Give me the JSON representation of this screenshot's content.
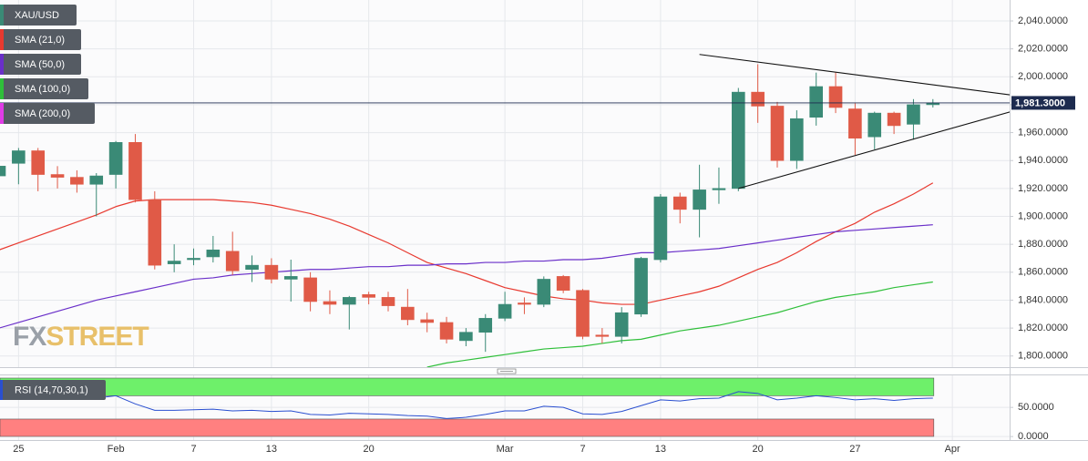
{
  "chart_data": {
    "type": "candlestick",
    "title": "XAU/USD",
    "up_color": "#3a8a76",
    "down_color": "#e05a47",
    "categories": [
      null,
      "25",
      null,
      null,
      null,
      null,
      "Feb",
      null,
      null,
      null,
      "7",
      null,
      null,
      null,
      "13",
      null,
      null,
      null,
      null,
      "20",
      null,
      null,
      null,
      null,
      null,
      null,
      "Mar",
      null,
      null,
      null,
      "7",
      null,
      null,
      null,
      "13",
      null,
      null,
      null,
      null,
      "20",
      null,
      null,
      null,
      null,
      "27",
      null,
      null,
      null,
      null,
      "Apr"
    ],
    "open": [
      1929,
      1938,
      1947,
      1930,
      1928,
      1923,
      1930,
      1953,
      1912,
      1866,
      1869,
      1871,
      1875,
      1862,
      1865,
      1855,
      1856,
      1839,
      1837,
      1844,
      1842,
      1835,
      1826,
      1824,
      1811,
      1817,
      1827,
      1838,
      1837,
      1857,
      1847,
      1815,
      1814,
      1830,
      1869,
      1914,
      1905,
      1919,
      1920,
      1989,
      1979,
      1940,
      1971,
      1993,
      1977,
      1957,
      1974,
      1966,
      1980,
      null
    ],
    "high": [
      1942,
      1949,
      1949,
      1936,
      1933,
      1931,
      1954,
      1959,
      1918,
      1880,
      1877,
      1886,
      1889,
      1872,
      1870,
      1869,
      1860,
      1847,
      1843,
      1846,
      1846,
      1848,
      1831,
      1828,
      1820,
      1830,
      1846,
      1842,
      1857,
      1858,
      1848,
      1820,
      1835,
      1871,
      1916,
      1917,
      1937,
      1935,
      1992,
      2009,
      1982,
      1976,
      2003,
      2003,
      1981,
      1975,
      1975,
      1984,
      1984,
      null
    ],
    "low": [
      1920,
      1923,
      1918,
      1920,
      1917,
      1900,
      1920,
      1910,
      1862,
      1860,
      1865,
      1867,
      1858,
      1853,
      1852,
      1839,
      1832,
      1830,
      1819,
      1837,
      1832,
      1822,
      1817,
      1809,
      1807,
      1803,
      1825,
      1830,
      1835,
      1845,
      1812,
      1809,
      1809,
      1828,
      1867,
      1895,
      1885,
      1909,
      1918,
      1967,
      1935,
      1934,
      1965,
      1974,
      1944,
      1948,
      1959,
      1955,
      1978,
      null
    ],
    "close": [
      1936,
      1947,
      1930,
      1928,
      1923,
      1929,
      1953,
      1912,
      1865,
      1868,
      1870,
      1876,
      1861,
      1865,
      1855,
      1857,
      1839,
      1837,
      1842,
      1842,
      1836,
      1826,
      1824,
      1812,
      1817,
      1827,
      1837,
      1837,
      1855,
      1847,
      1814,
      1814,
      1831,
      1870,
      1914,
      1905,
      1919,
      1920,
      1989,
      1979,
      1940,
      1970,
      1993,
      1978,
      1956,
      1974,
      1965,
      1980,
      1981.3,
      null
    ],
    "series": [
      {
        "name": "SMA (21,0)",
        "color": "#e8392f",
        "values": [
          1876,
          1881,
          1886,
          1891,
          1896,
          1901,
          1907,
          1911,
          1912,
          1912,
          1912,
          1912,
          1911,
          1910,
          1908,
          1905,
          1902,
          1898,
          1893,
          1887,
          1881,
          1874,
          1867,
          1863,
          1859,
          1854,
          1849,
          1846,
          1843,
          1841,
          1840,
          1838,
          1837,
          1837,
          1840,
          1843,
          1846,
          1850,
          1856,
          1862,
          1867,
          1874,
          1882,
          1889,
          1895,
          1903,
          1909,
          1916,
          1924,
          null
        ]
      },
      {
        "name": "SMA (50,0)",
        "color": "#6a2fc9",
        "values": [
          1820,
          1824,
          1828,
          1832,
          1836,
          1840,
          1843,
          1846,
          1849,
          1852,
          1855,
          1856,
          1858,
          1859,
          1860,
          1861,
          1862,
          1862,
          1863,
          1864,
          1864,
          1865,
          1865,
          1866,
          1866,
          1867,
          1867,
          1868,
          1868,
          1869,
          1869,
          1870,
          1872,
          1874,
          1874,
          1875,
          1876,
          1877,
          1879,
          1881,
          1883,
          1885,
          1887,
          1889,
          1890,
          1891,
          1892,
          1893,
          1894,
          null
        ]
      },
      {
        "name": "SMA (100,0)",
        "color": "#2fbf3a",
        "values": [
          null,
          null,
          null,
          null,
          null,
          null,
          null,
          null,
          null,
          null,
          null,
          null,
          null,
          null,
          null,
          null,
          null,
          null,
          null,
          null,
          null,
          null,
          1792,
          1795,
          1797,
          1799,
          1801,
          1803,
          1805,
          1806,
          1807,
          1809,
          1811,
          1812,
          1815,
          1818,
          1820,
          1822,
          1825,
          1828,
          1831,
          1835,
          1839,
          1842,
          1844,
          1846,
          1849,
          1851,
          1853,
          null
        ]
      },
      {
        "name": "SMA (200,0)",
        "color": "#e03ce6"
      }
    ],
    "ylim": [
      1792,
      2055
    ],
    "yticks": [
      {
        "value": 1800,
        "label": "1,800.0000"
      },
      {
        "value": 1820,
        "label": "1,820.0000"
      },
      {
        "value": 1840,
        "label": "1,840.0000"
      },
      {
        "value": 1860,
        "label": "1,860.0000"
      },
      {
        "value": 1880,
        "label": "1,880.0000"
      },
      {
        "value": 1900,
        "label": "1,900.0000"
      },
      {
        "value": 1920,
        "label": "1,920.0000"
      },
      {
        "value": 1940,
        "label": "1,940.0000"
      },
      {
        "value": 1960,
        "label": "1,960.0000"
      },
      {
        "value": 1980,
        "label": "1,980.0000"
      },
      {
        "value": 2000,
        "label": "2,000.0000"
      },
      {
        "value": 2020,
        "label": "2,020.0000"
      },
      {
        "value": 2040,
        "label": "2,040.0000"
      }
    ],
    "last_price": {
      "value": 1981.3,
      "label": "1,981.3000"
    },
    "trendlines": [
      {
        "points": [
          [
            36,
            2016
          ],
          [
            52,
            1987
          ]
        ]
      },
      {
        "points": [
          [
            38,
            1920
          ],
          [
            52,
            1975
          ]
        ]
      }
    ],
    "watermark": [
      "FX",
      "STREET"
    ],
    "grid": true,
    "rsi": {
      "name": "RSI (14,70,30,1)",
      "color": "#2a4fd0",
      "values": [
        69,
        70,
        68,
        67,
        66,
        66,
        70,
        56,
        45,
        45,
        46,
        47,
        44,
        45,
        43,
        44,
        38,
        37,
        40,
        39,
        38,
        36,
        35,
        31,
        33,
        38,
        44,
        44,
        52,
        50,
        39,
        38,
        43,
        53,
        63,
        61,
        65,
        66,
        77,
        74,
        63,
        66,
        70,
        67,
        63,
        65,
        62,
        65,
        66,
        null
      ],
      "overbought": 70,
      "oversold": 30,
      "overbought_color": "#6ef06a",
      "oversold_color": "#ff8080",
      "ylim": [
        -6,
        105
      ],
      "yticks": [
        {
          "value": 0,
          "label": "0.0000"
        },
        {
          "value": 50,
          "label": "50.0000"
        }
      ]
    }
  }
}
